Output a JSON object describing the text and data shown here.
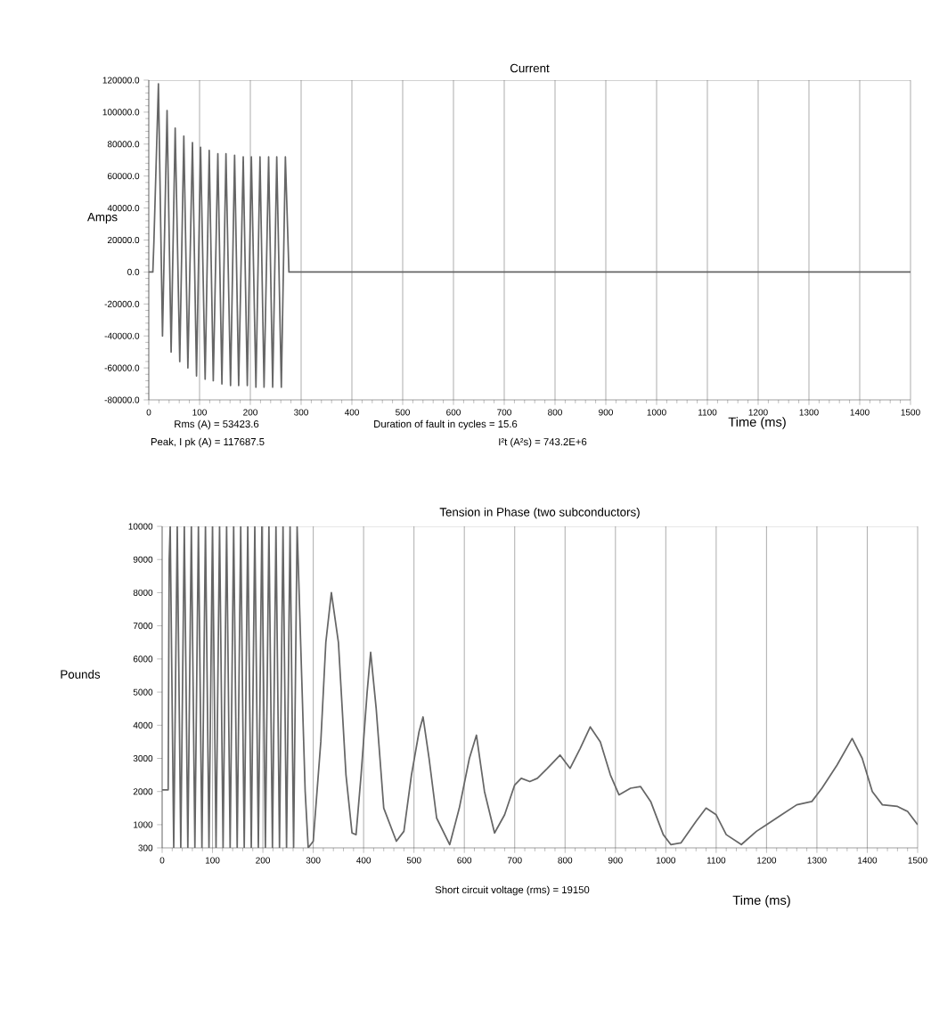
{
  "chart_data": [
    {
      "type": "line",
      "title": "Current",
      "xlabel": "Time (ms)",
      "ylabel": "Amps",
      "grid": "x",
      "marker": "none",
      "line_style": "solid",
      "xlim": [
        0,
        1500
      ],
      "ylim": [
        -80000,
        120000
      ],
      "xticks": [
        0,
        100,
        200,
        300,
        400,
        500,
        600,
        700,
        800,
        900,
        1000,
        1100,
        1200,
        1300,
        1400,
        1500
      ],
      "yticks": [
        {
          "value": -80000,
          "label": "-80000.0"
        },
        {
          "value": -60000,
          "label": "-60000.0"
        },
        {
          "value": -40000,
          "label": "-40000.0"
        },
        {
          "value": -20000,
          "label": "-20000.0"
        },
        {
          "value": 0,
          "label": "0.0"
        },
        {
          "value": 20000,
          "label": "20000.0"
        },
        {
          "value": 40000,
          "label": "40000.0"
        },
        {
          "value": 60000,
          "label": "60000.0"
        },
        {
          "value": 80000,
          "label": "80000.0"
        },
        {
          "value": 100000,
          "label": "100000.0"
        },
        {
          "value": 120000,
          "label": "120000.0"
        }
      ],
      "annotations": [
        "Rms (A) =  53423.6",
        "Peak, I pk (A)  =  117687.5",
        "Duration of fault in cycles = 15.6",
        "I²t  (A²s) = 743.2E+6"
      ],
      "series": [
        {
          "color": "#666666",
          "x": [
            0,
            8,
            10,
            19,
            27,
            36,
            44,
            52,
            61,
            69,
            77,
            86,
            94,
            102,
            111,
            119,
            127,
            136,
            144,
            152,
            161,
            169,
            177,
            186,
            194,
            202,
            211,
            219,
            227,
            236,
            244,
            252,
            261,
            269,
            276,
            400,
            600,
            800,
            1000,
            1200,
            1500
          ],
          "values": [
            0,
            0,
            18000,
            117687.5,
            -40000,
            101000,
            -50000,
            90000,
            -56000,
            85000,
            -60000,
            81000,
            -65000,
            78000,
            -67000,
            76000,
            -68000,
            74000,
            -70000,
            74000,
            -71000,
            73000,
            -71000,
            72000,
            -71000,
            72000,
            -72000,
            72000,
            -72000,
            72000,
            -72000,
            72000,
            -72000,
            72000,
            0,
            0,
            0,
            0,
            0,
            0,
            0
          ]
        }
      ]
    },
    {
      "type": "line",
      "title": "Tension in Phase (two subconductors)",
      "xlabel": "Time (ms)",
      "ylabel": "Pounds",
      "grid": "x",
      "marker": "none",
      "line_style": "solid",
      "xlim": [
        0,
        1500
      ],
      "ylim": [
        300,
        10000
      ],
      "xticks": [
        0,
        100,
        200,
        300,
        400,
        500,
        600,
        700,
        800,
        900,
        1000,
        1100,
        1200,
        1300,
        1400,
        1500
      ],
      "yticks": [
        300,
        1000,
        2000,
        3000,
        4000,
        5000,
        6000,
        7000,
        8000,
        9000,
        10000
      ],
      "annotations": [
        "Short circuit voltage (rms) =   19150"
      ],
      "series": [
        {
          "color": "#666666",
          "x": [
            0,
            12,
            14,
            16,
            23,
            30,
            37,
            44,
            51,
            58,
            65,
            72,
            79,
            86,
            93,
            100,
            107,
            114,
            121,
            128,
            135,
            142,
            149,
            156,
            163,
            170,
            177,
            184,
            191,
            198,
            205,
            212,
            219,
            226,
            233,
            240,
            247,
            254,
            261,
            268,
            278,
            284,
            290,
            300,
            315,
            325,
            336,
            350,
            365,
            377,
            385,
            395,
            407,
            414,
            425,
            440,
            465,
            480,
            495,
            510,
            518,
            530,
            545,
            571,
            590,
            610,
            624,
            640,
            660,
            680,
            700,
            713,
            730,
            745,
            765,
            790,
            810,
            830,
            850,
            870,
            890,
            907,
            930,
            950,
            970,
            995,
            1010,
            1030,
            1060,
            1080,
            1100,
            1120,
            1150,
            1180,
            1200,
            1230,
            1260,
            1290,
            1310,
            1340,
            1370,
            1390,
            1410,
            1430,
            1460,
            1480,
            1500
          ],
          "values": [
            2050,
            2050,
            9000,
            10000,
            300,
            10000,
            300,
            10000,
            300,
            10000,
            300,
            10000,
            300,
            10000,
            300,
            10000,
            300,
            10000,
            300,
            10000,
            300,
            10000,
            300,
            10000,
            300,
            10000,
            300,
            10000,
            300,
            10000,
            300,
            10000,
            300,
            10000,
            300,
            10000,
            300,
            10000,
            300,
            10000,
            5000,
            2000,
            300,
            500,
            3500,
            6500,
            8000,
            6500,
            2500,
            750,
            700,
            2500,
            5000,
            6200,
            4500,
            1500,
            500,
            800,
            2500,
            3800,
            4250,
            3000,
            1200,
            400,
            1500,
            3000,
            3700,
            2000,
            750,
            1300,
            2200,
            2400,
            2300,
            2400,
            2700,
            3100,
            2700,
            3300,
            3950,
            3500,
            2500,
            1900,
            2100,
            2150,
            1700,
            700,
            400,
            450,
            1100,
            1500,
            1300,
            700,
            400,
            800,
            1000,
            1300,
            1600,
            1700,
            2100,
            2800,
            3600,
            3000,
            2000,
            1600,
            1550,
            1400,
            1000
          ]
        }
      ]
    }
  ]
}
